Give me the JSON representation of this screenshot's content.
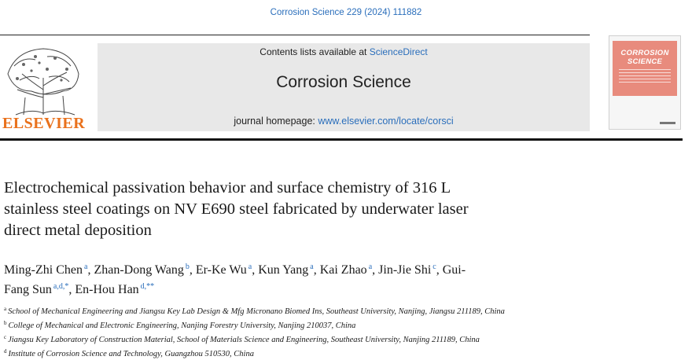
{
  "citation": "Corrosion Science 229 (2024) 111882",
  "publisher": {
    "name": "ELSEVIER",
    "brand_color": "#e9711c"
  },
  "banner": {
    "contents_prefix": "Contents lists available at ",
    "contents_link": "ScienceDirect",
    "journal_title": "Corrosion Science",
    "homepage_prefix": "journal homepage: ",
    "homepage_link": "www.elsevier.com/locate/corsci"
  },
  "cover": {
    "title_line1": "CORROSION",
    "title_line2": "SCIENCE",
    "band_color": "#e88b7d"
  },
  "article": {
    "title_line1": "Electrochemical passivation behavior and surface chemistry of 316 L",
    "title_line2": "stainless steel coatings on NV E690 steel fabricated by underwater laser",
    "title_line3": "direct metal deposition"
  },
  "authors": [
    {
      "name": "Ming-Zhi Chen",
      "sup": "a"
    },
    {
      "name": "Zhan-Dong Wang",
      "sup": "b"
    },
    {
      "name": "Er-Ke Wu",
      "sup": "a"
    },
    {
      "name": "Kun Yang",
      "sup": "a"
    },
    {
      "name": "Kai Zhao",
      "sup": "a"
    },
    {
      "name": "Jin-Jie Shi",
      "sup": "c"
    },
    {
      "name": "Gui-",
      "sup": ""
    },
    {
      "name": "Fang Sun",
      "sup": "a,d,*"
    },
    {
      "name": "En-Hou Han",
      "sup": "d,**"
    }
  ],
  "affiliations": [
    {
      "key": "a",
      "text": "School of Mechanical Engineering and Jiangsu Key Lab Design & Mfg Micronano Biomed Ins, Southeast University, Nanjing, Jiangsu 211189, China"
    },
    {
      "key": "b",
      "text": "College of Mechanical and Electronic Engineering, Nanjing Forestry University, Nanjing 210037, China"
    },
    {
      "key": "c",
      "text": "Jiangsu Key Laboratory of Construction Material, School of Materials Science and Engineering, Southeast University, Nanjing 211189, China"
    },
    {
      "key": "d",
      "text": "Institute of Corrosion Science and Technology, Guangzhou 510530, China"
    }
  ],
  "link_color": "#2a6ebb"
}
